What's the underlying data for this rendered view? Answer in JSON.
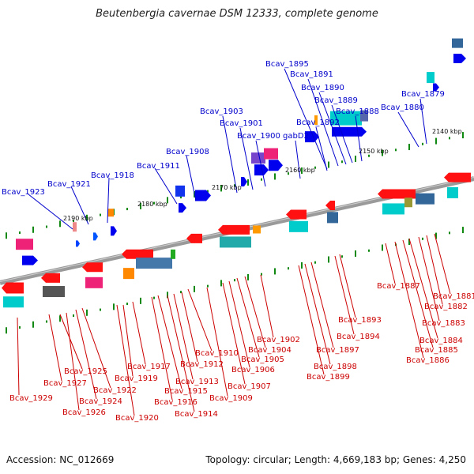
{
  "title": "Beutenbergia cavernae DSM 12333, complete genome",
  "footer": {
    "accession": "Accession: NC_012669",
    "summary": "Topology: circular; Length: 4,669,183 bp; Genes: 4,250"
  },
  "colors": {
    "axis": "#888888",
    "forward_label": "#0000cc",
    "reverse_label": "#cc0000",
    "tick": "#008800"
  },
  "scale_labels": [
    {
      "id": "kbp-2190",
      "text": "2190 kbp"
    },
    {
      "id": "kbp-2180",
      "text": "2180 kbp"
    },
    {
      "id": "kbp-2170",
      "text": "2170 kbp"
    },
    {
      "id": "kbp-2160",
      "text": "2160 kbp"
    },
    {
      "id": "kbp-2150",
      "text": "2150 kbp"
    },
    {
      "id": "kbp-2140",
      "text": "2140 kbp"
    }
  ],
  "top_labels": [
    {
      "id": "bcav-1923",
      "text": "Bcav_1923"
    },
    {
      "id": "bcav-1921",
      "text": "Bcav_1921"
    },
    {
      "id": "bcav-1918",
      "text": "Bcav_1918"
    },
    {
      "id": "bcav-1911",
      "text": "Bcav_1911"
    },
    {
      "id": "bcav-1908",
      "text": "Bcav_1908"
    },
    {
      "id": "bcav-1903",
      "text": "Bcav_1903"
    },
    {
      "id": "bcav-1901",
      "text": "Bcav_1901"
    },
    {
      "id": "bcav-1900",
      "text": "Bcav_1900"
    },
    {
      "id": "gabd2",
      "text": "gabD2"
    },
    {
      "id": "bcav-1895",
      "text": "Bcav_1895"
    },
    {
      "id": "bcav-1891",
      "text": "Bcav_1891"
    },
    {
      "id": "bcav-1892",
      "text": "Bcav_1892"
    },
    {
      "id": "bcav-1890",
      "text": "Bcav_1890"
    },
    {
      "id": "bcav-1889",
      "text": "Bcav_1889"
    },
    {
      "id": "bcav-1888",
      "text": "Bcav_1888"
    },
    {
      "id": "bcav-1880",
      "text": "Bcav_1880"
    },
    {
      "id": "bcav-1879",
      "text": "Bcav_1879"
    }
  ],
  "bottom_labels": [
    {
      "id": "bcav-1929",
      "text": "Bcav_1929"
    },
    {
      "id": "bcav-1927",
      "text": "Bcav_1927"
    },
    {
      "id": "bcav-1926",
      "text": "Bcav_1926"
    },
    {
      "id": "bcav-1925",
      "text": "Bcav_1925"
    },
    {
      "id": "bcav-1924",
      "text": "Bcav_1924"
    },
    {
      "id": "bcav-1922",
      "text": "Bcav_1922"
    },
    {
      "id": "bcav-1920",
      "text": "Bcav_1920"
    },
    {
      "id": "bcav-1919",
      "text": "Bcav_1919"
    },
    {
      "id": "bcav-1917",
      "text": "Bcav_1917"
    },
    {
      "id": "bcav-1916",
      "text": "Bcav_1916"
    },
    {
      "id": "bcav-1915",
      "text": "Bcav_1915"
    },
    {
      "id": "bcav-1914",
      "text": "Bcav_1914"
    },
    {
      "id": "bcav-1913",
      "text": "Bcav_1913"
    },
    {
      "id": "bcav-1912",
      "text": "Bcav_1912"
    },
    {
      "id": "bcav-1910",
      "text": "Bcav_1910"
    },
    {
      "id": "bcav-1909",
      "text": "Bcav_1909"
    },
    {
      "id": "bcav-1907",
      "text": "Bcav_1907"
    },
    {
      "id": "bcav-1906",
      "text": "Bcav_1906"
    },
    {
      "id": "bcav-1905",
      "text": "Bcav_1905"
    },
    {
      "id": "bcav-1904",
      "text": "Bcav_1904"
    },
    {
      "id": "bcav-1902",
      "text": "Bcav_1902"
    },
    {
      "id": "bcav-1899",
      "text": "Bcav_1899"
    },
    {
      "id": "bcav-1898",
      "text": "Bcav_1898"
    },
    {
      "id": "bcav-1897",
      "text": "Bcav_1897"
    },
    {
      "id": "bcav-1894",
      "text": "Bcav_1894"
    },
    {
      "id": "bcav-1893",
      "text": "Bcav_1893"
    },
    {
      "id": "bcav-1887",
      "text": "Bcav_1887"
    },
    {
      "id": "bcav-1886",
      "text": "Bcav_1886"
    },
    {
      "id": "bcav-1885",
      "text": "Bcav_1885"
    },
    {
      "id": "bcav-1884",
      "text": "Bcav_1884"
    },
    {
      "id": "bcav-1883",
      "text": "Bcav_1883"
    },
    {
      "id": "bcav-1882",
      "text": "Bcav_1882"
    },
    {
      "id": "bcav-1881",
      "text": "Bcav_1881"
    }
  ]
}
